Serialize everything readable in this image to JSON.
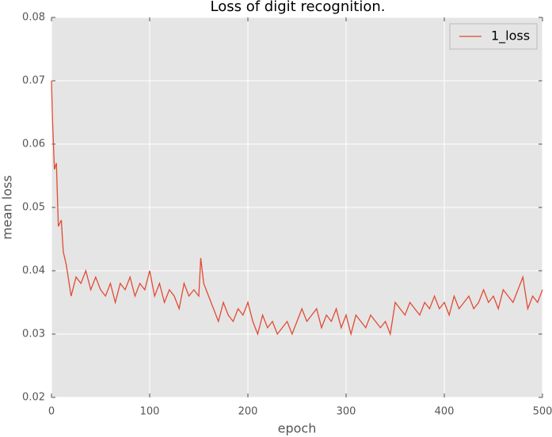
{
  "chart_data": {
    "type": "line",
    "title": "Loss of digit recognition.",
    "xlabel": "epoch",
    "ylabel": "mean loss",
    "x": [
      0,
      1,
      3,
      5,
      7,
      10,
      12,
      15,
      20,
      25,
      30,
      35,
      40,
      45,
      50,
      55,
      60,
      65,
      70,
      75,
      80,
      85,
      90,
      95,
      100,
      105,
      110,
      115,
      120,
      125,
      130,
      135,
      140,
      145,
      150,
      152,
      155,
      160,
      165,
      170,
      175,
      180,
      185,
      190,
      195,
      200,
      205,
      210,
      215,
      220,
      225,
      230,
      235,
      240,
      245,
      250,
      255,
      260,
      265,
      270,
      275,
      280,
      285,
      290,
      295,
      300,
      305,
      310,
      315,
      320,
      325,
      330,
      335,
      340,
      345,
      350,
      355,
      360,
      365,
      370,
      375,
      380,
      385,
      390,
      395,
      400,
      405,
      410,
      415,
      420,
      425,
      430,
      435,
      440,
      445,
      450,
      455,
      460,
      465,
      470,
      475,
      480,
      485,
      490,
      495,
      500
    ],
    "series": [
      {
        "name": "1_loss",
        "color": "#e24a33",
        "values": [
          0.07,
          0.064,
          0.056,
          0.057,
          0.047,
          0.048,
          0.043,
          0.041,
          0.036,
          0.039,
          0.038,
          0.04,
          0.037,
          0.039,
          0.037,
          0.036,
          0.038,
          0.035,
          0.038,
          0.037,
          0.039,
          0.036,
          0.038,
          0.037,
          0.04,
          0.036,
          0.038,
          0.035,
          0.037,
          0.036,
          0.034,
          0.038,
          0.036,
          0.037,
          0.036,
          0.042,
          0.038,
          0.036,
          0.034,
          0.032,
          0.035,
          0.033,
          0.032,
          0.034,
          0.033,
          0.035,
          0.032,
          0.03,
          0.033,
          0.031,
          0.032,
          0.03,
          0.031,
          0.032,
          0.03,
          0.032,
          0.034,
          0.032,
          0.033,
          0.034,
          0.031,
          0.033,
          0.032,
          0.034,
          0.031,
          0.033,
          0.03,
          0.033,
          0.032,
          0.031,
          0.033,
          0.032,
          0.031,
          0.032,
          0.03,
          0.035,
          0.034,
          0.033,
          0.035,
          0.034,
          0.033,
          0.035,
          0.034,
          0.036,
          0.034,
          0.035,
          0.033,
          0.036,
          0.034,
          0.035,
          0.036,
          0.034,
          0.035,
          0.037,
          0.035,
          0.036,
          0.034,
          0.037,
          0.036,
          0.035,
          0.037,
          0.039,
          0.034,
          0.036,
          0.035,
          0.037
        ]
      }
    ],
    "xlim": [
      0,
      500
    ],
    "xticks": [
      0,
      100,
      200,
      300,
      400,
      500
    ],
    "ylim": [
      0.02,
      0.08
    ],
    "yticks": [
      0.02,
      0.03,
      0.04,
      0.05,
      0.06,
      0.07,
      0.08
    ],
    "grid": true,
    "legend": "upper right"
  }
}
